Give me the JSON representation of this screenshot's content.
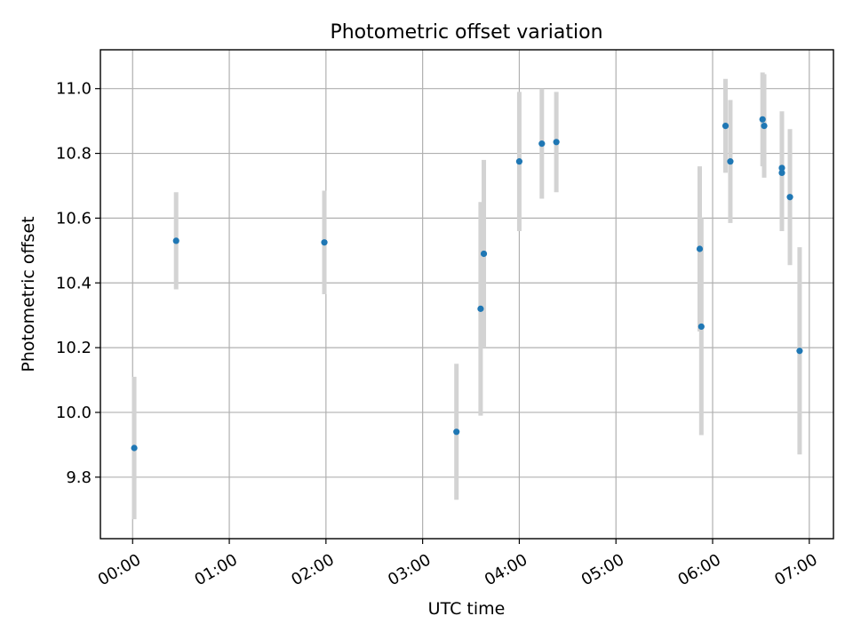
{
  "chart_data": {
    "type": "scatter",
    "title": "Photometric offset variation",
    "xlabel": "UTC time",
    "ylabel": "Photometric offset",
    "xlim": [
      "23:40",
      "07:15"
    ],
    "ylim": [
      9.61,
      11.12
    ],
    "grid": true,
    "colors": {
      "point": "#1f77b4",
      "errorbar": "#d3d3d3"
    },
    "x_ticks": [
      "00:00",
      "01:00",
      "02:00",
      "03:00",
      "04:00",
      "05:00",
      "06:00",
      "07:00"
    ],
    "y_ticks": [
      "9.8",
      "10.0",
      "10.2",
      "10.4",
      "10.6",
      "10.8",
      "11.0"
    ],
    "points": [
      {
        "x": "00:01",
        "y": 9.89,
        "err": 0.22
      },
      {
        "x": "00:27",
        "y": 10.53,
        "err": 0.15
      },
      {
        "x": "01:59",
        "y": 10.525,
        "err": 0.16
      },
      {
        "x": "03:21",
        "y": 9.94,
        "err": 0.21
      },
      {
        "x": "03:36",
        "y": 10.32,
        "err": 0.33
      },
      {
        "x": "03:38",
        "y": 10.49,
        "err": 0.29
      },
      {
        "x": "04:00",
        "y": 10.775,
        "err": 0.215
      },
      {
        "x": "04:14",
        "y": 10.83,
        "err": 0.17
      },
      {
        "x": "04:23",
        "y": 10.835,
        "err": 0.155
      },
      {
        "x": "05:52",
        "y": 10.505,
        "err": 0.255
      },
      {
        "x": "05:53",
        "y": 10.265,
        "err": 0.335
      },
      {
        "x": "06:08",
        "y": 10.885,
        "err": 0.145
      },
      {
        "x": "06:11",
        "y": 10.775,
        "err": 0.19
      },
      {
        "x": "06:31",
        "y": 10.905,
        "err": 0.145
      },
      {
        "x": "06:32",
        "y": 10.885,
        "err": 0.16
      },
      {
        "x": "06:43",
        "y": 10.755,
        "err": 0.175
      },
      {
        "x": "06:43",
        "y": 10.74,
        "err": 0.18
      },
      {
        "x": "06:48",
        "y": 10.665,
        "err": 0.21
      },
      {
        "x": "06:54",
        "y": 10.19,
        "err": 0.32
      }
    ]
  }
}
